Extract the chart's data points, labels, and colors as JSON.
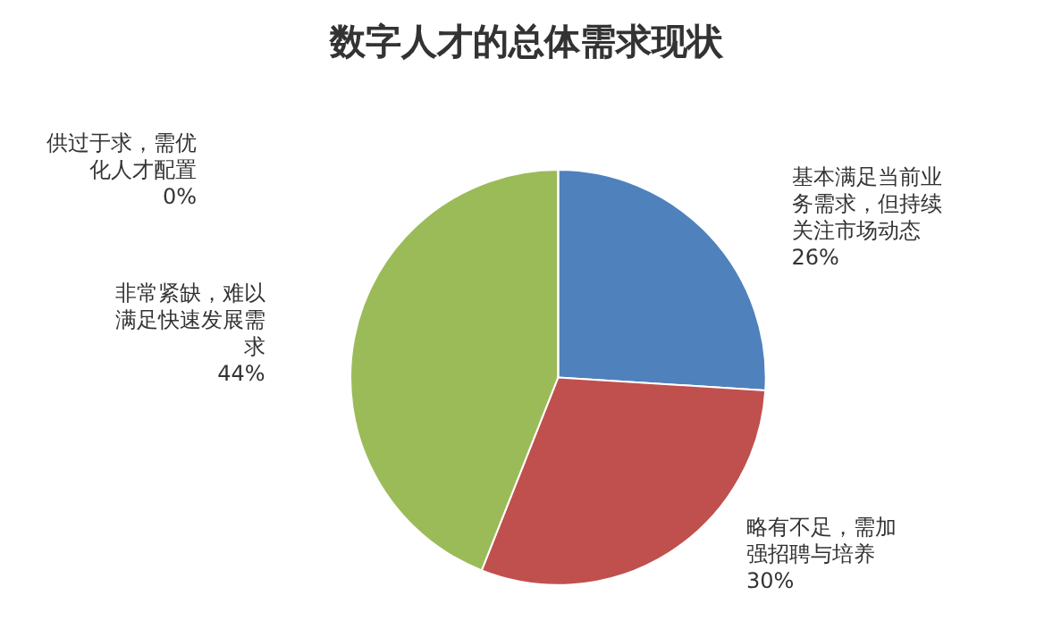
{
  "chart_data": {
    "type": "pie",
    "title": "数字人才的总体需求现状",
    "categories": [
      "基本满足当前业务需求，但持续关注市场动态",
      "略有不足，需加强招聘与培养",
      "非常紧缺，难以满足快速发展需求",
      "供过于求，需优化人才配置"
    ],
    "values": [
      26,
      30,
      44,
      0
    ],
    "colors": [
      "#4f81bd",
      "#c0504d",
      "#9bbb59",
      "#8064a2"
    ],
    "value_labels": [
      "26%",
      "30%",
      "44%",
      "0%"
    ],
    "legend": false
  }
}
